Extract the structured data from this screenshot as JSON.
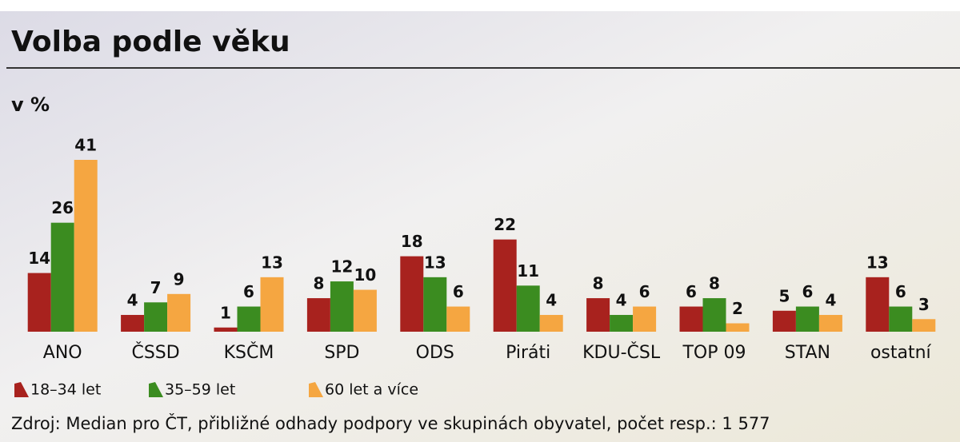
{
  "chart_data": {
    "type": "bar",
    "title": "Volba podle věku",
    "subtitle": "v %",
    "categories": [
      "ANO",
      "ČSSD",
      "KSČM",
      "SPD",
      "ODS",
      "Piráti",
      "KDU-ČSL",
      "TOP 09",
      "STAN",
      "ostatní"
    ],
    "series": [
      {
        "name": "18–34 let",
        "color": "#a8221e",
        "values": [
          14,
          4,
          1,
          8,
          18,
          22,
          8,
          6,
          5,
          13
        ]
      },
      {
        "name": "35–59 let",
        "color": "#3b8c20",
        "values": [
          26,
          7,
          6,
          12,
          13,
          11,
          4,
          8,
          6,
          6
        ]
      },
      {
        "name": "60 let a více",
        "color": "#f5a641",
        "values": [
          41,
          9,
          13,
          10,
          6,
          4,
          6,
          2,
          4,
          3
        ]
      }
    ],
    "source": "Zdroj: Median pro ČT, přibližné odhady podpory ve skupinách obyvatel, počet resp.: 1 577"
  }
}
